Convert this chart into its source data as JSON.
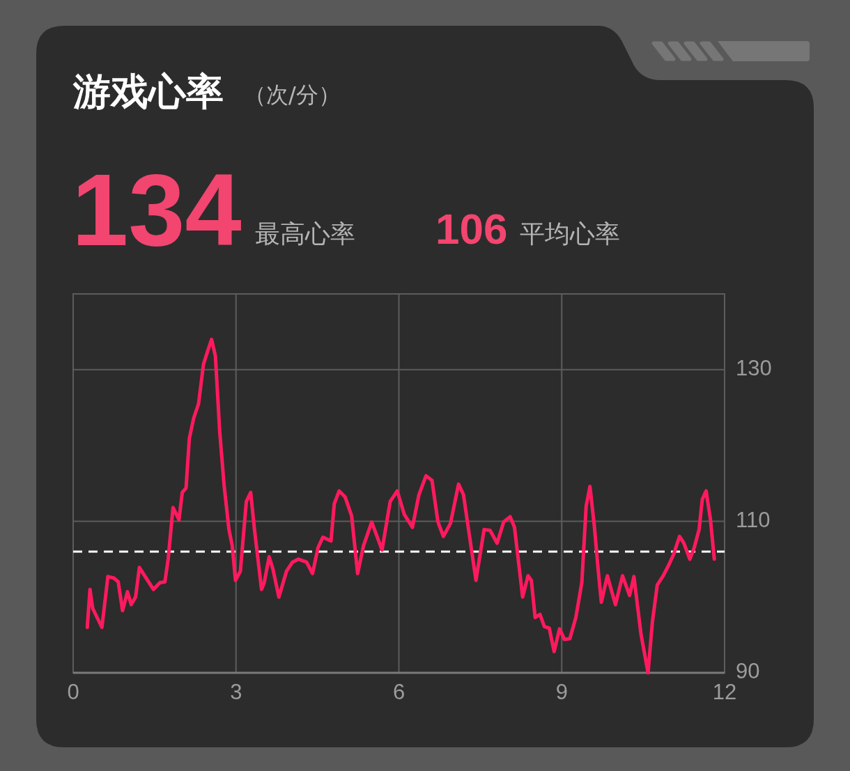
{
  "chart_data": {
    "type": "line",
    "title": "游戏心率",
    "subtitle": "（次/分）",
    "annotations": [
      "134",
      "最高心率",
      "106",
      "平均心率"
    ],
    "x": [
      0.26,
      0.31,
      0.36,
      0.53,
      0.64,
      0.75,
      0.83,
      0.91,
      1.0,
      1.07,
      1.15,
      1.22,
      1.3,
      1.48,
      1.6,
      1.69,
      1.75,
      1.84,
      1.95,
      2.01,
      2.08,
      2.14,
      2.22,
      2.31,
      2.4,
      2.48,
      2.55,
      2.62,
      2.7,
      2.78,
      2.87,
      2.93,
      2.99,
      3.08,
      3.19,
      3.27,
      3.34,
      3.47,
      3.52,
      3.61,
      3.68,
      3.79,
      3.93,
      4.04,
      4.15,
      4.3,
      4.41,
      4.51,
      4.6,
      4.75,
      4.81,
      4.9,
      5.01,
      5.13,
      5.24,
      5.35,
      5.5,
      5.69,
      5.84,
      5.97,
      6.1,
      6.25,
      6.37,
      6.5,
      6.61,
      6.72,
      6.82,
      6.95,
      7.1,
      7.19,
      7.29,
      7.42,
      7.57,
      7.68,
      7.81,
      7.93,
      8.05,
      8.13,
      8.28,
      8.38,
      8.44,
      8.51,
      8.6,
      8.68,
      8.77,
      8.86,
      8.96,
      9.05,
      9.15,
      9.26,
      9.37,
      9.45,
      9.52,
      9.6,
      9.67,
      9.73,
      9.84,
      9.99,
      10.12,
      10.25,
      10.33,
      10.46,
      10.59,
      10.67,
      10.76,
      10.87,
      10.97,
      11.06,
      11.17,
      11.25,
      11.36,
      11.44,
      11.53,
      11.59,
      11.66,
      11.74,
      11.81
    ],
    "series": [
      {
        "color": "#ff1a5e",
        "values": [
          96,
          101,
          98.5,
          96,
          102.7,
          102.5,
          102,
          98.2,
          100.7,
          99,
          100,
          103.9,
          103,
          101,
          101.9,
          102,
          105,
          111.8,
          110.2,
          113.8,
          114.4,
          120.9,
          123.6,
          125.5,
          130.7,
          132.5,
          134,
          131.8,
          121.8,
          114.8,
          108.9,
          106.8,
          102.2,
          103.4,
          112.6,
          113.8,
          108.9,
          101,
          101.9,
          105.3,
          103.7,
          100,
          103.4,
          104.6,
          105,
          104.6,
          103.1,
          106.5,
          107.9,
          107.4,
          112.3,
          114,
          113.2,
          110.7,
          103.1,
          106.8,
          109.9,
          106.2,
          112.6,
          114,
          110.9,
          109.2,
          113.5,
          116,
          115.4,
          109.9,
          108,
          109.7,
          114.9,
          113.5,
          108.6,
          102.2,
          108.9,
          108.8,
          107.1,
          109.9,
          110.6,
          109.2,
          100,
          102.8,
          102.2,
          97.3,
          97.7,
          96.1,
          95.9,
          92.8,
          95.8,
          94.4,
          94.5,
          97.3,
          101.9,
          112,
          114.6,
          109.4,
          103.7,
          99.3,
          102.8,
          99,
          102.8,
          100.2,
          102.7,
          95.1,
          90,
          96.7,
          101.6,
          102.8,
          104.2,
          105.6,
          108,
          107.1,
          105,
          106.5,
          108.9,
          112.9,
          114,
          110.2,
          105
        ]
      }
    ],
    "xlim": [
      0,
      12
    ],
    "xticks": [
      0,
      3,
      6,
      9,
      12
    ],
    "ylim": [
      90,
      140
    ],
    "yticks": [
      90,
      110,
      130
    ],
    "ref_lines": [
      {
        "axis": "y",
        "value": 106,
        "color": "#ffffff",
        "line_style": "dashed"
      }
    ],
    "grid": true,
    "marker": "none",
    "line_style": "solid"
  }
}
